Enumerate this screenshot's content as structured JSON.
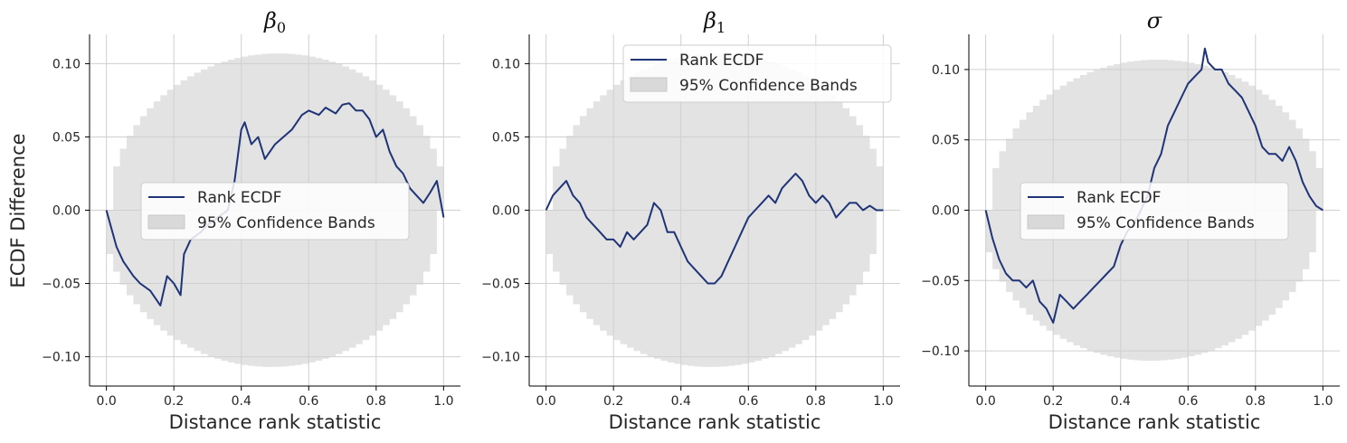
{
  "figure": {
    "ylabel": "ECDF Difference",
    "legend_entries": [
      "Rank ECDF",
      "95% Confidence Bands"
    ],
    "colors": {
      "line": "#1f3377",
      "band": "#d9d9d9",
      "grid": "#d0d0d0",
      "axis": "#000000"
    }
  },
  "chart_data": [
    {
      "type": "line",
      "title_symbol": "β",
      "title_subscript": "0",
      "xlabel": "Distance rank statistic",
      "ylabel": "ECDF Difference",
      "xlim": [
        -0.05,
        1.05
      ],
      "ylim": [
        -0.12,
        0.12
      ],
      "xticks": [
        0.0,
        0.2,
        0.4,
        0.6,
        0.8,
        1.0
      ],
      "xtick_labels": [
        "0.0",
        "0.2",
        "0.4",
        "0.6",
        "0.8",
        "1.0"
      ],
      "yticks": [
        -0.1,
        -0.05,
        0.0,
        0.05,
        0.1
      ],
      "ytick_labels": [
        "−0.10",
        "−0.05",
        "0.00",
        "0.05",
        "0.10"
      ],
      "grid": true,
      "legend_position": "center",
      "band_half_width_max": 0.107,
      "series": [
        {
          "name": "Rank ECDF",
          "x": [
            0.0,
            0.03,
            0.05,
            0.08,
            0.1,
            0.13,
            0.16,
            0.18,
            0.2,
            0.22,
            0.23,
            0.25,
            0.28,
            0.3,
            0.33,
            0.36,
            0.38,
            0.4,
            0.41,
            0.43,
            0.45,
            0.47,
            0.5,
            0.55,
            0.58,
            0.6,
            0.63,
            0.65,
            0.68,
            0.7,
            0.72,
            0.74,
            0.76,
            0.78,
            0.8,
            0.82,
            0.84,
            0.86,
            0.88,
            0.9,
            0.92,
            0.94,
            0.96,
            0.98,
            1.0
          ],
          "y": [
            0.0,
            -0.025,
            -0.035,
            -0.045,
            -0.05,
            -0.055,
            -0.065,
            -0.045,
            -0.05,
            -0.058,
            -0.03,
            -0.02,
            -0.015,
            -0.01,
            -0.005,
            0.0,
            0.02,
            0.055,
            0.06,
            0.045,
            0.05,
            0.035,
            0.045,
            0.055,
            0.065,
            0.068,
            0.065,
            0.07,
            0.066,
            0.072,
            0.073,
            0.068,
            0.068,
            0.062,
            0.05,
            0.055,
            0.04,
            0.03,
            0.025,
            0.015,
            0.01,
            0.005,
            0.012,
            0.02,
            -0.005
          ]
        }
      ]
    },
    {
      "type": "line",
      "title_symbol": "β",
      "title_subscript": "1",
      "xlabel": "Distance rank statistic",
      "ylabel": "",
      "xlim": [
        -0.05,
        1.05
      ],
      "ylim": [
        -0.12,
        0.12
      ],
      "xticks": [
        0.0,
        0.2,
        0.4,
        0.6,
        0.8,
        1.0
      ],
      "xtick_labels": [
        "0.0",
        "0.2",
        "0.4",
        "0.6",
        "0.8",
        "1.0"
      ],
      "yticks": [
        -0.1,
        -0.05,
        0.0,
        0.05,
        0.1
      ],
      "ytick_labels": [
        "−0.10",
        "−0.05",
        "0.00",
        "0.05",
        "0.10"
      ],
      "grid": true,
      "legend_position": "top-right",
      "band_half_width_max": 0.107,
      "series": [
        {
          "name": "Rank ECDF",
          "x": [
            0.0,
            0.02,
            0.04,
            0.06,
            0.08,
            0.1,
            0.12,
            0.14,
            0.16,
            0.18,
            0.2,
            0.22,
            0.24,
            0.26,
            0.28,
            0.3,
            0.32,
            0.34,
            0.36,
            0.38,
            0.4,
            0.42,
            0.44,
            0.46,
            0.48,
            0.5,
            0.52,
            0.54,
            0.56,
            0.58,
            0.6,
            0.62,
            0.64,
            0.66,
            0.68,
            0.7,
            0.72,
            0.74,
            0.76,
            0.78,
            0.8,
            0.82,
            0.84,
            0.86,
            0.88,
            0.9,
            0.92,
            0.94,
            0.96,
            0.98,
            1.0
          ],
          "y": [
            0.0,
            0.01,
            0.015,
            0.02,
            0.01,
            0.005,
            -0.005,
            -0.01,
            -0.015,
            -0.02,
            -0.02,
            -0.025,
            -0.015,
            -0.02,
            -0.015,
            -0.01,
            0.005,
            0.0,
            -0.015,
            -0.015,
            -0.025,
            -0.035,
            -0.04,
            -0.045,
            -0.05,
            -0.05,
            -0.045,
            -0.035,
            -0.025,
            -0.015,
            -0.005,
            0.0,
            0.005,
            0.01,
            0.005,
            0.015,
            0.02,
            0.025,
            0.02,
            0.01,
            0.005,
            0.01,
            0.005,
            -0.005,
            0.0,
            0.005,
            0.005,
            0.0,
            0.003,
            0.0,
            0.0
          ]
        }
      ]
    },
    {
      "type": "line",
      "title_symbol": "σ",
      "title_subscript": "",
      "xlabel": "Distance rank statistic",
      "ylabel": "",
      "xlim": [
        -0.05,
        1.05
      ],
      "ylim": [
        -0.125,
        0.125
      ],
      "xticks": [
        0.0,
        0.2,
        0.4,
        0.6,
        0.8,
        1.0
      ],
      "xtick_labels": [
        "0.0",
        "0.2",
        "0.4",
        "0.6",
        "0.8",
        "1.0"
      ],
      "yticks": [
        -0.1,
        -0.05,
        0.0,
        0.05,
        0.1
      ],
      "ytick_labels": [
        "−0.10",
        "−0.05",
        "0.00",
        "0.05",
        "0.10"
      ],
      "grid": true,
      "legend_position": "center",
      "band_half_width_max": 0.107,
      "series": [
        {
          "name": "Rank ECDF",
          "x": [
            0.0,
            0.02,
            0.04,
            0.06,
            0.08,
            0.1,
            0.12,
            0.14,
            0.16,
            0.18,
            0.2,
            0.22,
            0.24,
            0.26,
            0.28,
            0.3,
            0.32,
            0.34,
            0.36,
            0.38,
            0.4,
            0.42,
            0.44,
            0.46,
            0.48,
            0.5,
            0.52,
            0.54,
            0.56,
            0.58,
            0.6,
            0.62,
            0.64,
            0.65,
            0.66,
            0.68,
            0.7,
            0.72,
            0.74,
            0.76,
            0.78,
            0.8,
            0.82,
            0.84,
            0.86,
            0.88,
            0.9,
            0.92,
            0.94,
            0.96,
            0.98,
            1.0
          ],
          "y": [
            0.0,
            -0.02,
            -0.035,
            -0.045,
            -0.05,
            -0.05,
            -0.055,
            -0.05,
            -0.065,
            -0.07,
            -0.08,
            -0.06,
            -0.065,
            -0.07,
            -0.065,
            -0.06,
            -0.055,
            -0.05,
            -0.045,
            -0.04,
            -0.025,
            -0.015,
            -0.01,
            0.0,
            0.01,
            0.03,
            0.04,
            0.06,
            0.07,
            0.08,
            0.09,
            0.095,
            0.1,
            0.115,
            0.105,
            0.1,
            0.1,
            0.09,
            0.085,
            0.08,
            0.07,
            0.06,
            0.045,
            0.04,
            0.04,
            0.035,
            0.045,
            0.035,
            0.02,
            0.01,
            0.003,
            0.0
          ]
        }
      ]
    }
  ]
}
